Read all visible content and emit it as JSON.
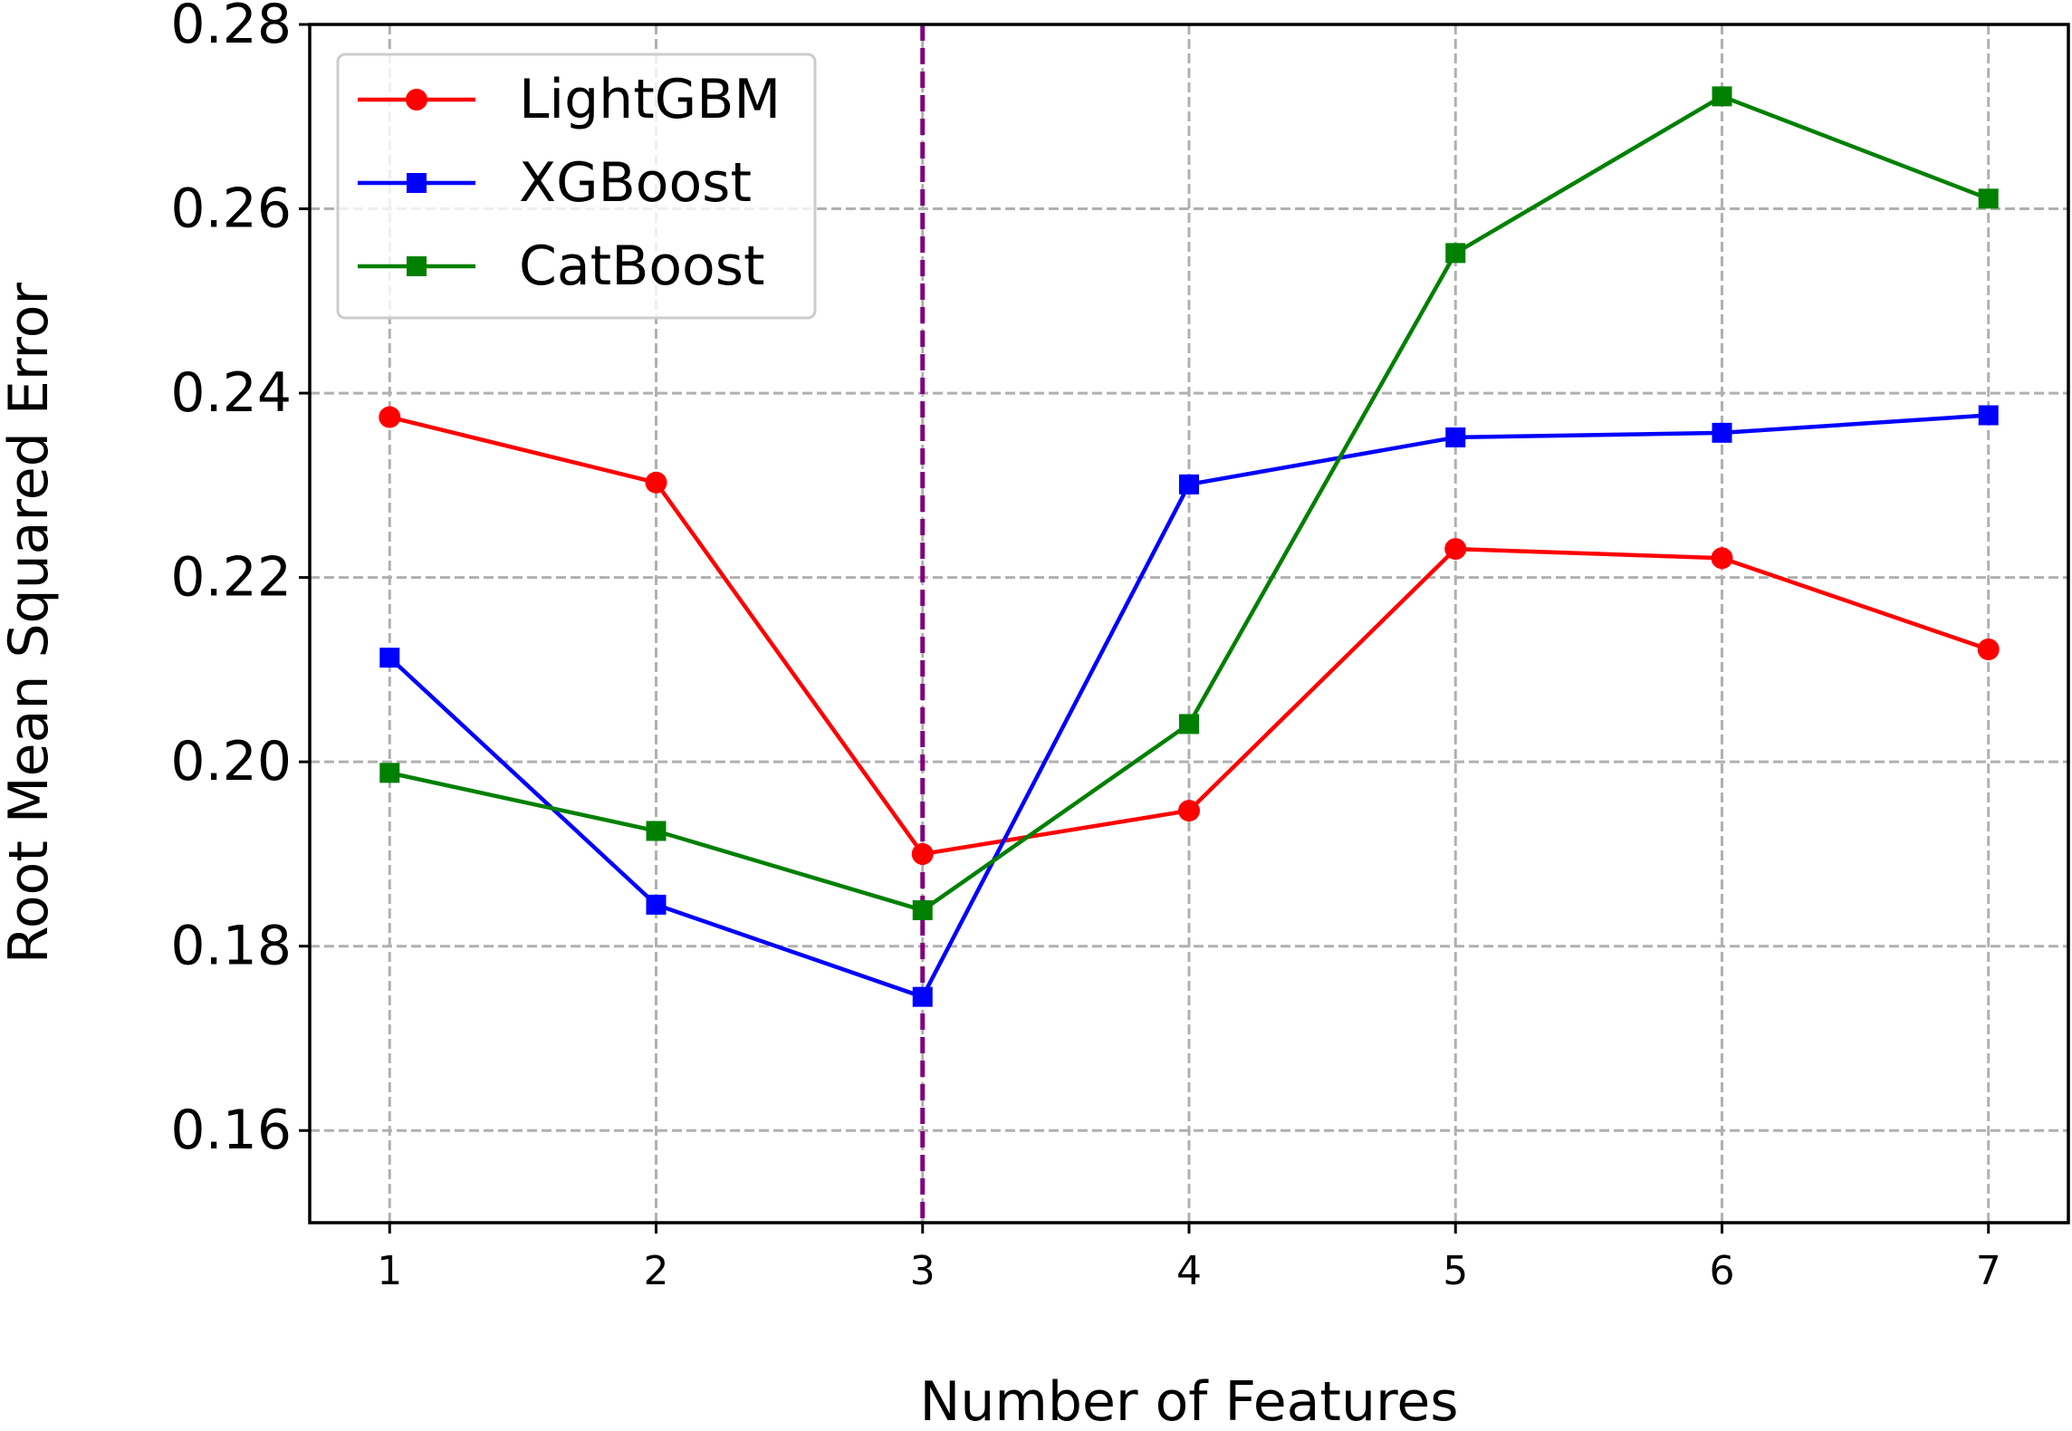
{
  "chart_data": {
    "type": "line",
    "xlabel": "Number of Features",
    "ylabel": "Root Mean Squared Error",
    "x": [
      1,
      2,
      3,
      4,
      5,
      6,
      7
    ],
    "x_ticks": [
      "1",
      "2",
      "3",
      "4",
      "5",
      "6",
      "7"
    ],
    "xlim": [
      0.7,
      7.3
    ],
    "ylim": [
      0.15,
      0.28
    ],
    "y_ticks": [
      "0.16",
      "0.18",
      "0.20",
      "0.22",
      "0.24",
      "0.26",
      "0.28"
    ],
    "grid": true,
    "legend_position": "top-left",
    "vertical_line": {
      "x": 3,
      "color": "#800080",
      "style": "dashed"
    },
    "series": [
      {
        "name": "LightGBM",
        "color": "#ff0000",
        "marker": "circle",
        "values": [
          0.2374,
          0.2303,
          0.19,
          0.1947,
          0.2231,
          0.2221,
          0.2122
        ]
      },
      {
        "name": "XGBoost",
        "color": "#0000ff",
        "marker": "square",
        "values": [
          0.2113,
          0.1845,
          0.1745,
          0.2301,
          0.2352,
          0.2357,
          0.2376
        ]
      },
      {
        "name": "CatBoost",
        "color": "#008000",
        "marker": "square",
        "values": [
          0.1988,
          0.1925,
          0.1839,
          0.2041,
          0.2552,
          0.2722,
          0.2611
        ]
      }
    ]
  }
}
